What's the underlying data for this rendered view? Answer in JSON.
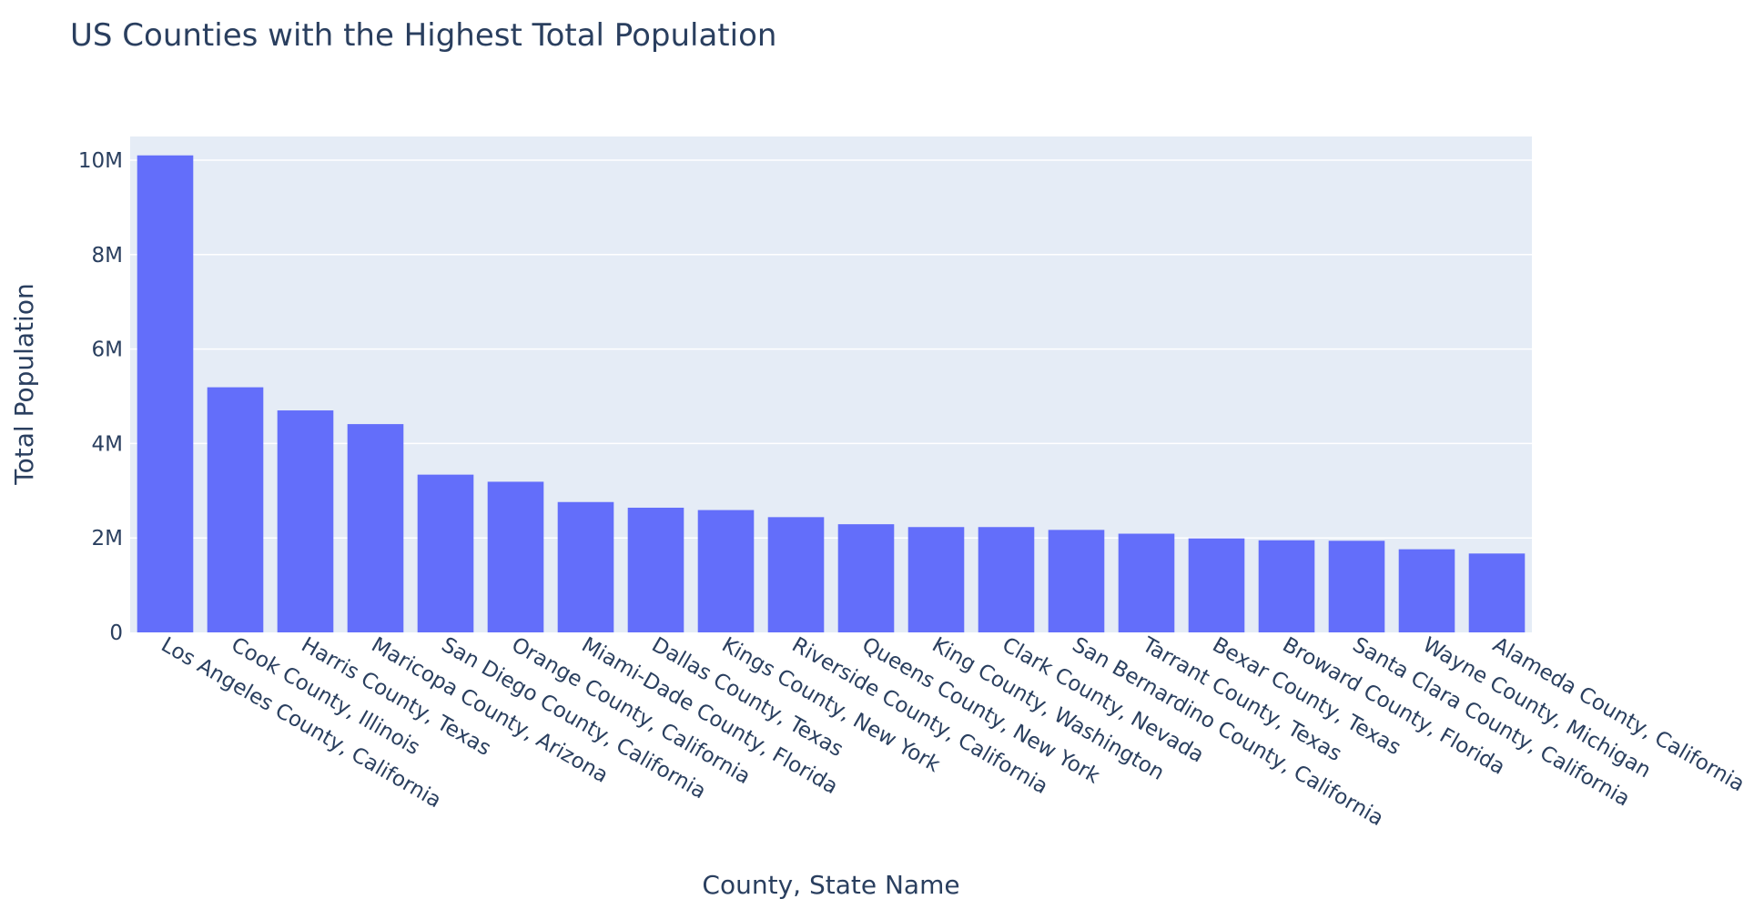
{
  "chart_data": {
    "type": "bar",
    "title": "US Counties with the Highest Total Population",
    "xlabel": "County, State Name",
    "ylabel": "Total Population",
    "ylim": [
      0,
      10500000
    ],
    "y_ticks": [
      {
        "value": 0,
        "label": "0"
      },
      {
        "value": 2000000,
        "label": "2M"
      },
      {
        "value": 4000000,
        "label": "4M"
      },
      {
        "value": 6000000,
        "label": "6M"
      },
      {
        "value": 8000000,
        "label": "8M"
      },
      {
        "value": 10000000,
        "label": "10M"
      }
    ],
    "grid": true,
    "colors": {
      "bar": "#636efa",
      "plot_bg": "#e5ecf6",
      "grid": "#ffffff",
      "text": "#2a3f5f"
    },
    "categories": [
      "Los Angeles County, California",
      "Cook County, Illinois",
      "Harris County, Texas",
      "Maricopa County, Arizona",
      "San Diego County, California",
      "Orange County, California",
      "Miami-Dade County, Florida",
      "Dallas County, Texas",
      "Kings County, New York",
      "Riverside County, California",
      "Queens County, New York",
      "King County, Washington",
      "Clark County, Nevada",
      "San Bernardino County, California",
      "Tarrant County, Texas",
      "Bexar County, Texas",
      "Broward County, Florida",
      "Santa Clara County, California",
      "Wayne County, Michigan",
      "Alameda County, California"
    ],
    "values": [
      10100000,
      5190000,
      4700000,
      4410000,
      3340000,
      3190000,
      2760000,
      2640000,
      2590000,
      2440000,
      2290000,
      2230000,
      2230000,
      2170000,
      2090000,
      1990000,
      1950000,
      1940000,
      1760000,
      1670000
    ]
  }
}
